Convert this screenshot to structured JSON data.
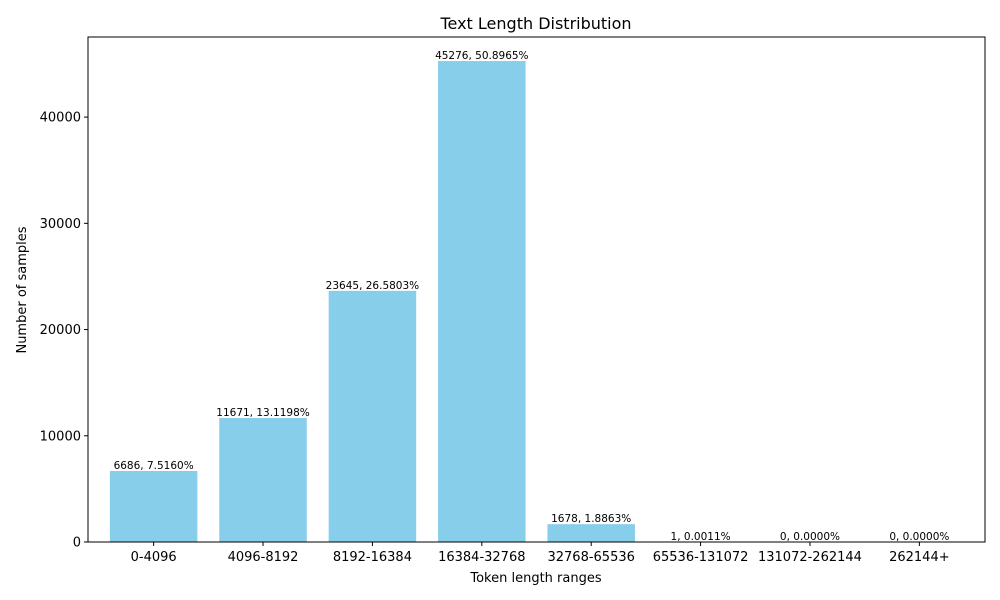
{
  "chart_data": {
    "type": "bar",
    "title": "Text Length Distribution",
    "xlabel": "Token length ranges",
    "ylabel": "Number of samples",
    "categories": [
      "0-4096",
      "4096-8192",
      "8192-16384",
      "16384-32768",
      "32768-65536",
      "65536-131072",
      "131072-262144",
      "262144+"
    ],
    "values": [
      6686,
      11671,
      23645,
      45276,
      1678,
      1,
      0,
      0
    ],
    "bar_labels": [
      "6686, 7.5160%",
      "11671, 13.1198%",
      "23645, 26.5803%",
      "45276, 50.8965%",
      "1678, 1.8863%",
      "1, 0.0011%",
      "0, 0.0000%",
      "0, 0.0000%"
    ],
    "ylim": [
      0,
      47540
    ],
    "yticks": [
      0,
      10000,
      20000,
      30000,
      40000
    ],
    "bar_color": "#87CEEB",
    "grid": false,
    "legend": null
  }
}
